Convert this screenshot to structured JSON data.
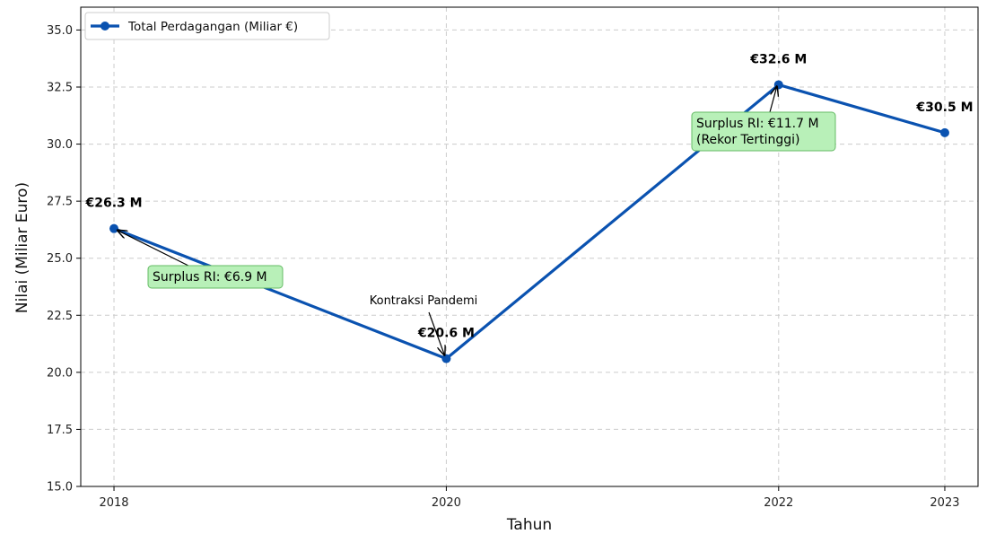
{
  "chart_data": {
    "type": "line",
    "xlabel": "Tahun",
    "ylabel": "Nilai (Miliar Euro)",
    "x": [
      2018,
      2020,
      2022,
      2023
    ],
    "xticks": [
      "2018",
      "2020",
      "2022",
      "2023"
    ],
    "xlim": [
      2017.8,
      2023.2
    ],
    "ylim": [
      15.0,
      36.0
    ],
    "yticks": [
      "15.0",
      "17.5",
      "20.0",
      "22.5",
      "25.0",
      "27.5",
      "30.0",
      "32.5",
      "35.0"
    ],
    "grid": true,
    "legend_position": "top-left",
    "series": [
      {
        "name": "Total Perdagangan (Miliar €)",
        "values": [
          26.3,
          20.6,
          32.6,
          30.5
        ],
        "color": "#0a52b0",
        "data_labels": [
          "€26.3 M",
          "€20.6 M",
          "€32.6 M",
          "€30.5 M"
        ]
      }
    ],
    "annotations": [
      {
        "text": "Surplus RI: €6.9 M",
        "x": 2018,
        "y": 26.3,
        "boxed": true
      },
      {
        "text": "Kontraksi Pandemi",
        "x": 2020,
        "y": 20.6,
        "boxed": false,
        "color": "#ff0000"
      },
      {
        "text": "Surplus RI: €11.7 M\n(Rekor Tertinggi)",
        "lines": [
          "Surplus RI: €11.7 M",
          "(Rekor Tertinggi)"
        ],
        "x": 2022,
        "y": 32.6,
        "boxed": true
      }
    ],
    "annotation_box_color": "#b8f0b8",
    "annotation_box_border": "#66bb66"
  }
}
